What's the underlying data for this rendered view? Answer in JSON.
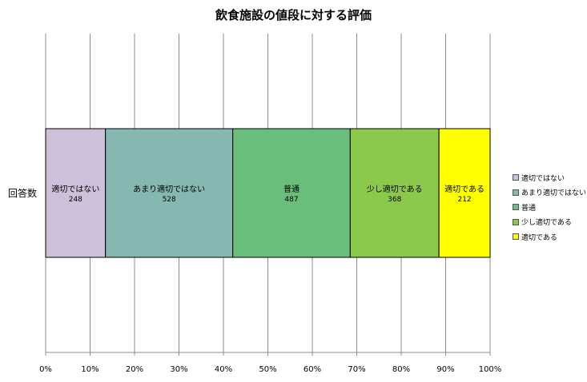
{
  "chart_data": {
    "type": "bar",
    "orientation": "horizontal",
    "stacked": "percent",
    "title": "飲食施設の値段に対する評価",
    "categories": [
      "回答数"
    ],
    "series": [
      {
        "name": "適切ではない",
        "values": [
          248
        ],
        "color": "#ccc0da"
      },
      {
        "name": "あまり適切ではない",
        "values": [
          528
        ],
        "color": "#85b8b0"
      },
      {
        "name": "普通",
        "values": [
          487
        ],
        "color": "#68be7a"
      },
      {
        "name": "少し適切である",
        "values": [
          368
        ],
        "color": "#8cc84b"
      },
      {
        "name": "適切である",
        "values": [
          212
        ],
        "color": "#ffff00"
      }
    ],
    "xlim": [
      0,
      100
    ],
    "xticks": [
      "0%",
      "10%",
      "20%",
      "30%",
      "40%",
      "50%",
      "60%",
      "70%",
      "80%",
      "90%",
      "100%"
    ],
    "grid": true,
    "legend": "right"
  }
}
